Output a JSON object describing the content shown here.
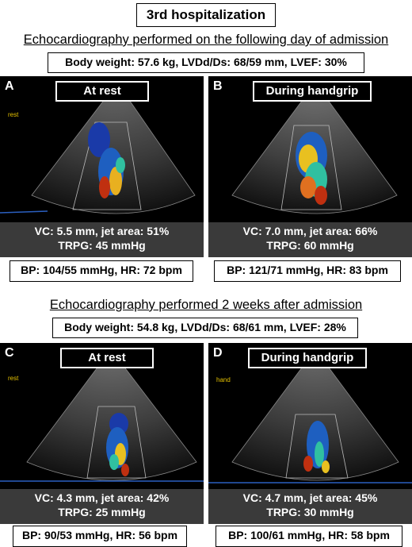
{
  "title": "3rd hospitalization",
  "sections": [
    {
      "heading": "Echocardiography performed on the following day of admission",
      "metrics": "Body weight: 57.6 kg, LVDd/Ds: 68/59 mm, LVEF: 30%",
      "panels": [
        {
          "letter": "A",
          "label": "At rest",
          "mode_tag": "rest",
          "caption_line1": "VC: 5.5 mm, jet area: 51%",
          "caption_line2": "TRPG: 45 mmHg",
          "bp": "BP: 104/55 mmHg, HR: 72 bpm"
        },
        {
          "letter": "B",
          "label": "During handgrip",
          "mode_tag": "",
          "caption_line1": "VC: 7.0 mm, jet area: 66%",
          "caption_line2": "TRPG: 60 mmHg",
          "bp": "BP: 121/71 mmHg, HR: 83 bpm"
        }
      ]
    },
    {
      "heading": "Echocardiography performed 2 weeks after admission",
      "metrics": "Body weight: 54.8 kg, LVDd/Ds: 68/61 mm, LVEF: 28%",
      "panels": [
        {
          "letter": "C",
          "label": "At rest",
          "mode_tag": "rest",
          "caption_line1": "VC: 4.3 mm, jet area: 42%",
          "caption_line2": "TRPG: 25 mmHg",
          "bp": "BP: 90/53 mmHg, HR: 56 bpm"
        },
        {
          "letter": "D",
          "label": "During handgrip",
          "mode_tag": "hand",
          "caption_line1": "VC: 4.7 mm, jet area: 45%",
          "caption_line2": "TRPG: 30 mmHg",
          "bp": "BP: 100/61 mmHg, HR: 58 bpm"
        }
      ]
    }
  ],
  "colors": {
    "panel_background": "#000000",
    "caption_background": "#3a3a3a",
    "mode_tag": "#e6c200"
  }
}
